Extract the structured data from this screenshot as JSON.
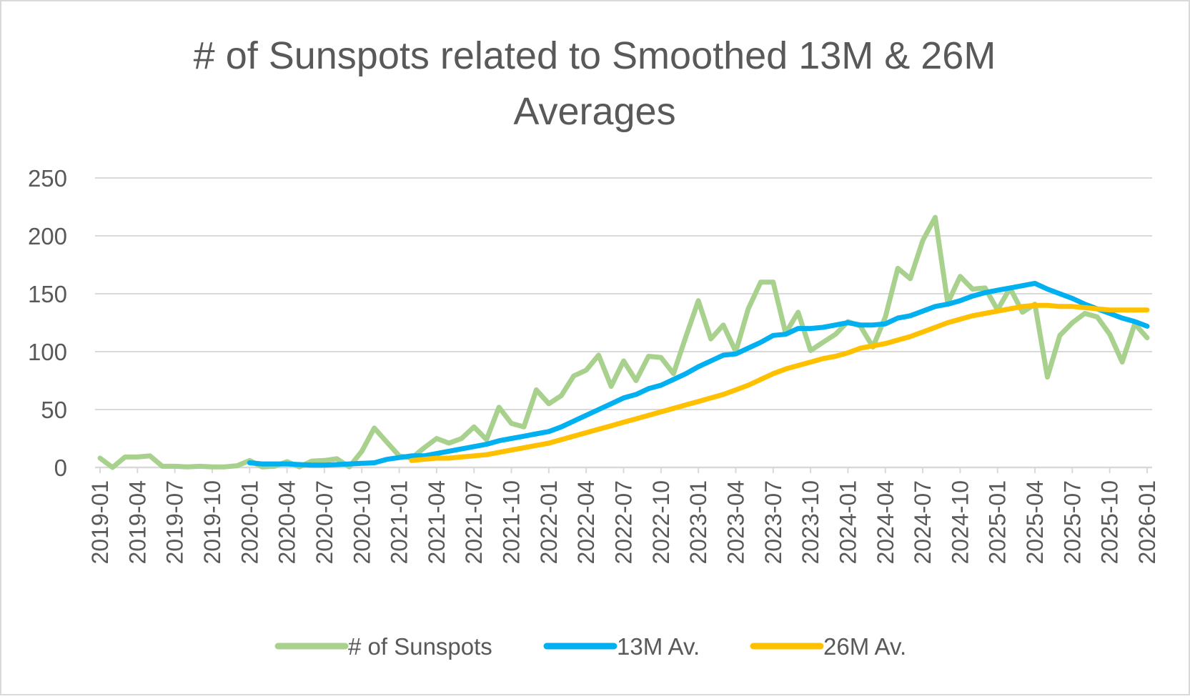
{
  "chart_data": {
    "type": "line",
    "title_lines": [
      "# of Sunspots related to Smoothed 13M & 26M",
      "Averages"
    ],
    "xlabel": "",
    "ylabel": "",
    "ylim": [
      0,
      250
    ],
    "yticks": [
      "0",
      "50",
      "100",
      "150",
      "200",
      "250"
    ],
    "ytick_values": [
      0,
      50,
      100,
      150,
      200,
      250
    ],
    "grid": true,
    "legend_position": "bottom",
    "xtick_labels": [
      "2019-01",
      "2019-04",
      "2019-07",
      "2019-10",
      "2020-01",
      "2020-04",
      "2020-07",
      "2020-10",
      "2021-01",
      "2021-04",
      "2021-07",
      "2021-10",
      "2022-01",
      "2022-04",
      "2022-07",
      "2022-10",
      "2023-01",
      "2023-04",
      "2023-07",
      "2023-10",
      "2024-01",
      "2024-04",
      "2024-07",
      "2024-10",
      "2025-01",
      "2025-04",
      "2025-07",
      "2025-10",
      "2026-01"
    ],
    "categories": [
      "2019-01",
      "2019-02",
      "2019-03",
      "2019-04",
      "2019-05",
      "2019-06",
      "2019-07",
      "2019-08",
      "2019-09",
      "2019-10",
      "2019-11",
      "2019-12",
      "2020-01",
      "2020-02",
      "2020-03",
      "2020-04",
      "2020-05",
      "2020-06",
      "2020-07",
      "2020-08",
      "2020-09",
      "2020-10",
      "2020-11",
      "2020-12",
      "2021-01",
      "2021-02",
      "2021-03",
      "2021-04",
      "2021-05",
      "2021-06",
      "2021-07",
      "2021-08",
      "2021-09",
      "2021-10",
      "2021-11",
      "2021-12",
      "2022-01",
      "2022-02",
      "2022-03",
      "2022-04",
      "2022-05",
      "2022-06",
      "2022-07",
      "2022-08",
      "2022-09",
      "2022-10",
      "2022-11",
      "2022-12",
      "2023-01",
      "2023-02",
      "2023-03",
      "2023-04",
      "2023-05",
      "2023-06",
      "2023-07",
      "2023-08",
      "2023-09",
      "2023-10",
      "2023-11",
      "2023-12",
      "2024-01",
      "2024-02",
      "2024-03",
      "2024-04",
      "2024-05",
      "2024-06",
      "2024-07",
      "2024-08",
      "2024-09",
      "2024-10",
      "2024-11",
      "2024-12",
      "2025-01",
      "2025-02",
      "2025-03",
      "2025-04",
      "2025-05",
      "2025-06",
      "2025-07",
      "2025-08",
      "2025-09",
      "2025-10",
      "2025-11",
      "2025-12",
      "2026-01"
    ],
    "series": [
      {
        "name": "# of Sunspots",
        "color": "#A9D18E",
        "values": [
          8,
          0,
          9,
          9,
          10,
          1,
          1,
          0.5,
          1,
          0.5,
          0.5,
          1.5,
          6,
          0.5,
          1,
          5,
          0.5,
          5.5,
          6,
          7.5,
          0.5,
          14,
          34,
          22,
          10,
          8,
          17,
          25,
          21,
          25,
          35,
          24,
          52,
          38,
          35,
          67,
          55,
          62,
          79,
          84,
          97,
          70,
          92,
          75,
          96,
          95,
          81,
          113,
          144,
          111,
          123,
          100,
          137,
          160,
          160,
          116,
          134,
          101,
          108,
          115,
          126,
          122,
          104,
          130,
          172,
          163,
          196,
          216,
          142,
          165,
          154,
          155,
          136,
          155,
          134,
          141,
          78,
          114,
          125,
          133,
          130,
          115,
          91,
          124,
          112
        ]
      },
      {
        "name": "13M Av.",
        "color": "#00B0F0",
        "values": [
          null,
          null,
          null,
          null,
          null,
          null,
          null,
          null,
          null,
          null,
          null,
          null,
          4,
          3,
          3,
          3,
          2.5,
          2,
          2,
          2.5,
          3,
          3.5,
          4,
          7,
          8.5,
          10,
          10,
          12,
          14,
          16,
          18,
          20,
          23,
          25,
          27,
          29,
          31,
          35,
          40,
          45,
          50,
          55,
          60,
          63,
          68,
          71,
          76,
          81,
          87,
          92,
          97,
          98,
          103,
          108,
          114,
          115,
          120,
          120,
          121,
          123,
          125,
          123,
          123,
          124,
          129,
          131,
          135,
          139,
          141,
          144,
          148,
          151,
          153,
          155,
          157,
          159,
          154,
          150,
          146,
          141,
          137,
          133,
          129,
          126,
          122
        ]
      },
      {
        "name": "26M Av.",
        "color": "#FFC000",
        "values": [
          null,
          null,
          null,
          null,
          null,
          null,
          null,
          null,
          null,
          null,
          null,
          null,
          null,
          null,
          null,
          null,
          null,
          null,
          null,
          null,
          null,
          null,
          null,
          null,
          null,
          6,
          7,
          8,
          8,
          9,
          10,
          11,
          13,
          15,
          17,
          19,
          21,
          24,
          27,
          30,
          33,
          36,
          39,
          42,
          45,
          48,
          51,
          54,
          57,
          60,
          63,
          67,
          71,
          76,
          81,
          85,
          88,
          91,
          94,
          96,
          99,
          103,
          105,
          107,
          110,
          113,
          117,
          121,
          125,
          128,
          131,
          133,
          135,
          137,
          139,
          140,
          140,
          139,
          139,
          138,
          137,
          136,
          136,
          136,
          136
        ]
      }
    ]
  }
}
